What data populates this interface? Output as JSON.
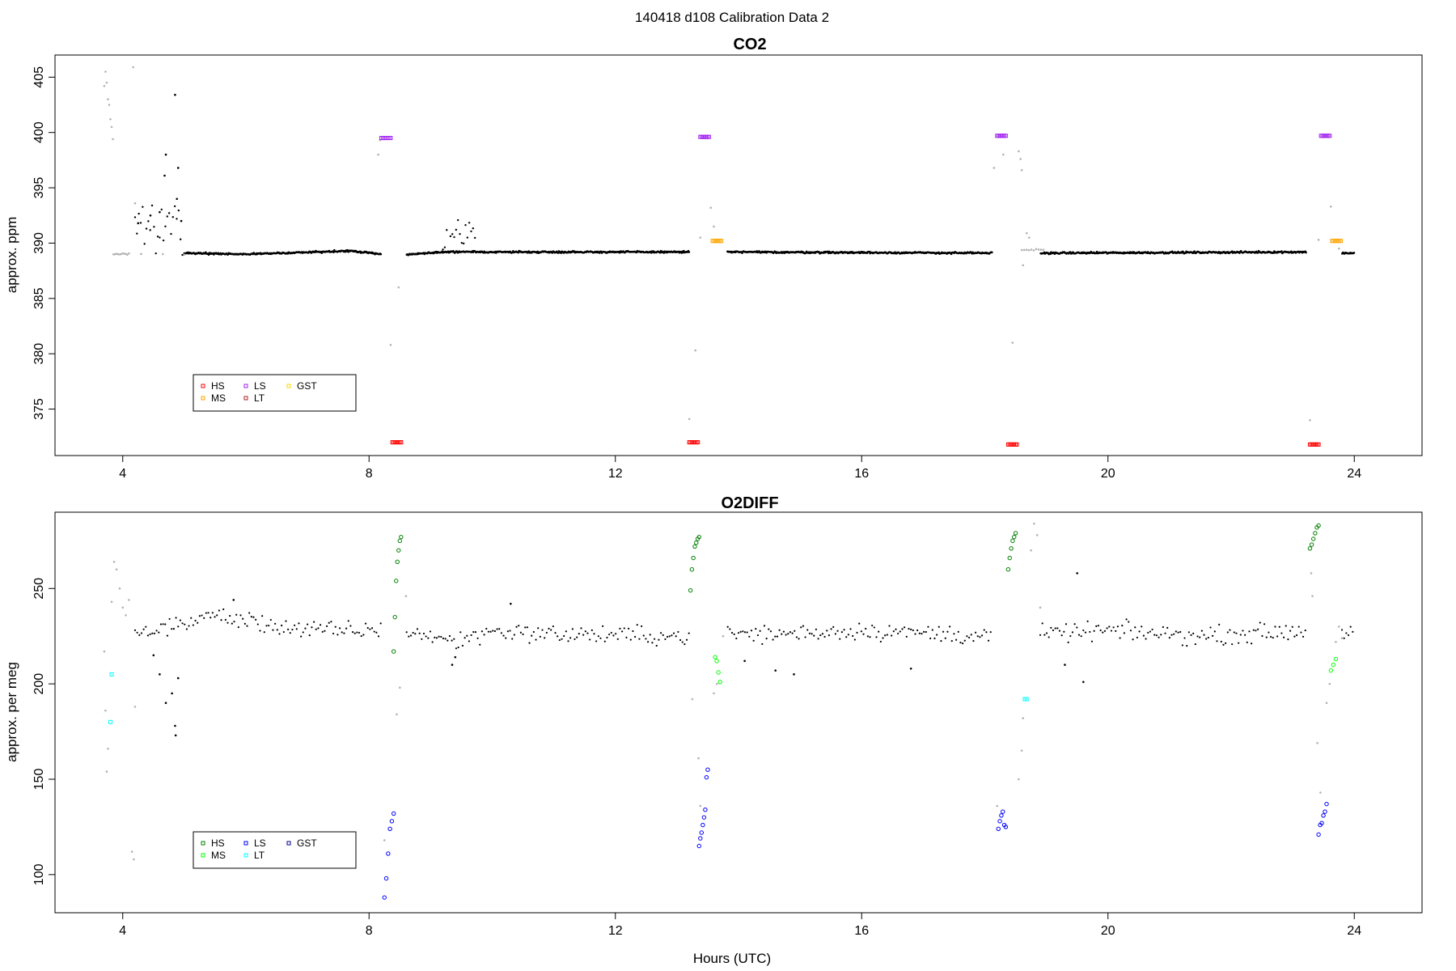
{
  "figure": {
    "title": "140418   d108   Calibration Data 2"
  },
  "colors": {
    "ambient": "#000000",
    "flush": "#b3b3b3"
  },
  "chart_data": [
    {
      "id": "co2",
      "type": "scatter",
      "title": "CO2",
      "xlabel": "",
      "ylabel": "approx. ppm",
      "xlim": [
        2.9,
        25.1
      ],
      "ylim": [
        370.8,
        407.0
      ],
      "xticks": [
        4,
        8,
        12,
        16,
        20,
        24
      ],
      "yticks": [
        375,
        380,
        385,
        390,
        395,
        400,
        405
      ],
      "legend": {
        "placement": "bottom-left",
        "entries": [
          {
            "name": "HS",
            "color": "#ff0000"
          },
          {
            "name": "MS",
            "color": "#ffa500"
          },
          {
            "name": "LS",
            "color": "#a020f0"
          },
          {
            "name": "LT",
            "color": "#b22222"
          },
          {
            "name": "GST",
            "color": "#ffd700"
          }
        ]
      },
      "gaps": [
        [
          8.2,
          8.6
        ],
        [
          13.2,
          13.82
        ],
        [
          18.12,
          18.9
        ],
        [
          23.22,
          23.8
        ]
      ],
      "baseline": [
        [
          5.0,
          389.1
        ],
        [
          6.0,
          389.0
        ],
        [
          7.7,
          389.3
        ],
        [
          8.2,
          389.0
        ],
        [
          8.7,
          389.0
        ],
        [
          9.2,
          389.2
        ],
        [
          10.5,
          389.2
        ],
        [
          13.2,
          389.2
        ],
        [
          13.8,
          389.2
        ],
        [
          18.1,
          389.1
        ],
        [
          18.9,
          389.1
        ],
        [
          23.2,
          389.2
        ],
        [
          23.8,
          389.1
        ],
        [
          24.0,
          389.1
        ]
      ],
      "noise_segments": [
        {
          "from": 4.2,
          "to": 5.0,
          "low": 388.8,
          "high": 393.5,
          "n": 26
        },
        {
          "from": 9.2,
          "to": 9.75,
          "low": 389.2,
          "high": 392.3,
          "n": 18
        }
      ],
      "ambient_points": [
        [
          4.85,
          403.4
        ],
        [
          4.7,
          398.0
        ],
        [
          4.68,
          396.1
        ],
        [
          4.9,
          396.8
        ],
        [
          4.88,
          394.0
        ],
        [
          4.95,
          392.0
        ],
        [
          4.25,
          391.8
        ],
        [
          4.45,
          392.5
        ],
        [
          4.6,
          392.8
        ]
      ],
      "flush_segments": [
        {
          "from": 4.3,
          "to": 5.0,
          "value": 389.0,
          "n": 3
        },
        {
          "from": 3.85,
          "to": 4.1,
          "value": 389.0,
          "n": 10
        },
        {
          "from": 18.6,
          "to": 18.95,
          "value": 389.4,
          "n": 10
        }
      ],
      "flush_points": [
        [
          3.7,
          404.2
        ],
        [
          3.72,
          405.5
        ],
        [
          3.74,
          404.5
        ],
        [
          3.76,
          403.0
        ],
        [
          3.78,
          402.5
        ],
        [
          3.8,
          401.2
        ],
        [
          3.82,
          400.5
        ],
        [
          3.84,
          399.4
        ],
        [
          4.17,
          405.9
        ],
        [
          4.2,
          393.6
        ],
        [
          8.15,
          398.0
        ],
        [
          8.18,
          399.3
        ],
        [
          8.35,
          380.8
        ],
        [
          8.48,
          386.0
        ],
        [
          13.2,
          374.1
        ],
        [
          13.3,
          380.3
        ],
        [
          13.38,
          390.5
        ],
        [
          13.55,
          393.2
        ],
        [
          13.6,
          391.5
        ],
        [
          18.15,
          396.8
        ],
        [
          18.3,
          398.0
        ],
        [
          18.45,
          381.0
        ],
        [
          18.55,
          398.3
        ],
        [
          18.58,
          397.6
        ],
        [
          18.6,
          396.6
        ],
        [
          18.62,
          388.0
        ],
        [
          18.68,
          390.9
        ],
        [
          18.72,
          390.5
        ],
        [
          23.28,
          374.0
        ],
        [
          23.42,
          390.3
        ],
        [
          23.62,
          393.3
        ],
        [
          23.75,
          389.5
        ]
      ],
      "calibration_runs": [
        {
          "name": "LS",
          "color": "#a020f0",
          "shape": "square",
          "from": 8.2,
          "to": 8.35,
          "value": 399.5,
          "n": 7
        },
        {
          "name": "HS",
          "color": "#ff0000",
          "shape": "square",
          "from": 8.38,
          "to": 8.52,
          "value": 372.0,
          "n": 7
        },
        {
          "name": "HS",
          "color": "#ff0000",
          "shape": "square",
          "from": 13.2,
          "to": 13.34,
          "value": 372.0,
          "n": 7
        },
        {
          "name": "LS",
          "color": "#a020f0",
          "shape": "square",
          "from": 13.38,
          "to": 13.52,
          "value": 399.6,
          "n": 7
        },
        {
          "name": "MS",
          "color": "#ffa500",
          "shape": "square",
          "from": 13.58,
          "to": 13.72,
          "value": 390.2,
          "n": 7
        },
        {
          "name": "LS",
          "color": "#a020f0",
          "shape": "square",
          "from": 18.2,
          "to": 18.34,
          "value": 399.7,
          "n": 7
        },
        {
          "name": "HS",
          "color": "#ff0000",
          "shape": "square",
          "from": 18.38,
          "to": 18.52,
          "value": 371.8,
          "n": 7
        },
        {
          "name": "HS",
          "color": "#ff0000",
          "shape": "square",
          "from": 23.28,
          "to": 23.42,
          "value": 371.8,
          "n": 7
        },
        {
          "name": "LS",
          "color": "#a020f0",
          "shape": "square",
          "from": 23.46,
          "to": 23.6,
          "value": 399.7,
          "n": 7
        },
        {
          "name": "MS",
          "color": "#ffa500",
          "shape": "square",
          "from": 23.64,
          "to": 23.78,
          "value": 390.2,
          "n": 7
        }
      ],
      "grid": false
    },
    {
      "id": "o2diff",
      "type": "scatter",
      "title": "O2DIFF",
      "xlabel": "Hours (UTC)",
      "ylabel": "approx. per meg",
      "xlim": [
        2.9,
        25.1
      ],
      "ylim": [
        80,
        290
      ],
      "xticks": [
        4,
        8,
        12,
        16,
        20,
        24
      ],
      "yticks": [
        100,
        150,
        200,
        250
      ],
      "legend": {
        "placement": "bottom-left",
        "entries": [
          {
            "name": "HS",
            "color": "#008000"
          },
          {
            "name": "MS",
            "color": "#00ff00"
          },
          {
            "name": "LS",
            "color": "#0000ff"
          },
          {
            "name": "LT",
            "color": "#00ffff"
          },
          {
            "name": "GST",
            "color": "#00008b"
          }
        ]
      },
      "gaps": [
        [
          8.2,
          8.6
        ],
        [
          13.2,
          13.82
        ],
        [
          18.12,
          18.9
        ],
        [
          23.22,
          23.8
        ]
      ],
      "baseline": [
        [
          4.2,
          226
        ],
        [
          5.0,
          232
        ],
        [
          5.5,
          236
        ],
        [
          6.0,
          233
        ],
        [
          7.0,
          228
        ],
        [
          8.2,
          228
        ],
        [
          8.6,
          228
        ],
        [
          9.4,
          222
        ],
        [
          10.0,
          228
        ],
        [
          11.0,
          226
        ],
        [
          13.2,
          225
        ],
        [
          13.8,
          226
        ],
        [
          14.5,
          226
        ],
        [
          16.0,
          228
        ],
        [
          18.1,
          225
        ],
        [
          18.9,
          226
        ],
        [
          20.0,
          228
        ],
        [
          21.5,
          225
        ],
        [
          23.2,
          228
        ],
        [
          23.8,
          227
        ],
        [
          24.0,
          227
        ]
      ],
      "noise": 7,
      "ambient_points": [
        [
          4.5,
          215
        ],
        [
          4.6,
          205
        ],
        [
          4.7,
          190
        ],
        [
          4.8,
          195
        ],
        [
          4.85,
          178
        ],
        [
          4.86,
          173
        ],
        [
          4.9,
          203
        ],
        [
          9.35,
          210
        ],
        [
          9.4,
          214
        ],
        [
          14.1,
          212
        ],
        [
          14.6,
          207
        ],
        [
          14.9,
          205
        ],
        [
          16.8,
          208
        ],
        [
          19.6,
          201
        ],
        [
          19.5,
          258
        ],
        [
          19.3,
          210
        ],
        [
          10.3,
          242
        ],
        [
          5.8,
          244
        ]
      ],
      "flush_points": [
        [
          3.7,
          217
        ],
        [
          3.72,
          186
        ],
        [
          3.74,
          154
        ],
        [
          3.76,
          166
        ],
        [
          3.82,
          243
        ],
        [
          3.86,
          264
        ],
        [
          3.9,
          260
        ],
        [
          3.95,
          250
        ],
        [
          4.0,
          240
        ],
        [
          4.05,
          236
        ],
        [
          4.1,
          244
        ],
        [
          4.15,
          112
        ],
        [
          4.18,
          108
        ],
        [
          4.2,
          188
        ],
        [
          8.25,
          118
        ],
        [
          8.45,
          184
        ],
        [
          8.5,
          198
        ],
        [
          8.6,
          246
        ],
        [
          13.25,
          192
        ],
        [
          13.35,
          161
        ],
        [
          13.38,
          136
        ],
        [
          13.6,
          195
        ],
        [
          13.65,
          200
        ],
        [
          13.75,
          225
        ],
        [
          18.2,
          136
        ],
        [
          18.55,
          150
        ],
        [
          18.6,
          165
        ],
        [
          18.62,
          182
        ],
        [
          18.75,
          270
        ],
        [
          18.8,
          284
        ],
        [
          18.85,
          278
        ],
        [
          18.9,
          240
        ],
        [
          23.3,
          258
        ],
        [
          23.32,
          246
        ],
        [
          23.4,
          169
        ],
        [
          23.45,
          143
        ],
        [
          23.55,
          190
        ],
        [
          23.6,
          200
        ],
        [
          23.7,
          222
        ],
        [
          23.75,
          230
        ],
        [
          23.8,
          224
        ]
      ],
      "calibration_runs": [
        {
          "name": "LT",
          "color": "#00ffff",
          "shape": "square",
          "from": 3.8,
          "to": 3.8,
          "value": 180,
          "n": 1
        },
        {
          "name": "LT",
          "color": "#00ffff",
          "shape": "square",
          "from": 3.82,
          "to": 3.82,
          "value": 205,
          "n": 1
        },
        {
          "name": "LS",
          "color": "#0000ff",
          "shape": "circle",
          "from": 8.25,
          "to": 8.4,
          "values": [
            88,
            98,
            111,
            124,
            128,
            132
          ]
        },
        {
          "name": "HS",
          "color": "#008000",
          "shape": "circle",
          "from": 8.4,
          "to": 8.52,
          "values": [
            217,
            235,
            254,
            264,
            270,
            275,
            277
          ]
        },
        {
          "name": "HS",
          "color": "#008000",
          "shape": "circle",
          "from": 13.22,
          "to": 13.36,
          "values": [
            249,
            260,
            266,
            272,
            274,
            276,
            277
          ]
        },
        {
          "name": "LS",
          "color": "#0000ff",
          "shape": "circle",
          "from": 13.36,
          "to": 13.5,
          "values": [
            115,
            119,
            122,
            126,
            130,
            134,
            151,
            155
          ]
        },
        {
          "name": "MS",
          "color": "#00ff00",
          "shape": "circle",
          "from": 13.62,
          "to": 13.7,
          "values": [
            214,
            212,
            206,
            201
          ]
        },
        {
          "name": "LS",
          "color": "#0000ff",
          "shape": "circle",
          "from": 18.22,
          "to": 18.34,
          "values": [
            124,
            128,
            131,
            133,
            126,
            125
          ]
        },
        {
          "name": "HS",
          "color": "#008000",
          "shape": "circle",
          "from": 18.38,
          "to": 18.5,
          "values": [
            260,
            266,
            271,
            275,
            277,
            279
          ]
        },
        {
          "name": "LT",
          "color": "#00ffff",
          "shape": "square",
          "from": 18.65,
          "to": 18.68,
          "value": 192,
          "n": 2
        },
        {
          "name": "HS",
          "color": "#008000",
          "shape": "circle",
          "from": 23.28,
          "to": 23.42,
          "values": [
            271,
            273,
            276,
            279,
            282,
            283
          ]
        },
        {
          "name": "LS",
          "color": "#0000ff",
          "shape": "circle",
          "from": 23.42,
          "to": 23.55,
          "values": [
            121,
            126,
            127,
            131,
            133,
            137
          ]
        },
        {
          "name": "MS",
          "color": "#00ff00",
          "shape": "circle",
          "from": 23.62,
          "to": 23.7,
          "values": [
            207,
            210,
            213
          ]
        }
      ],
      "grid": false
    }
  ]
}
